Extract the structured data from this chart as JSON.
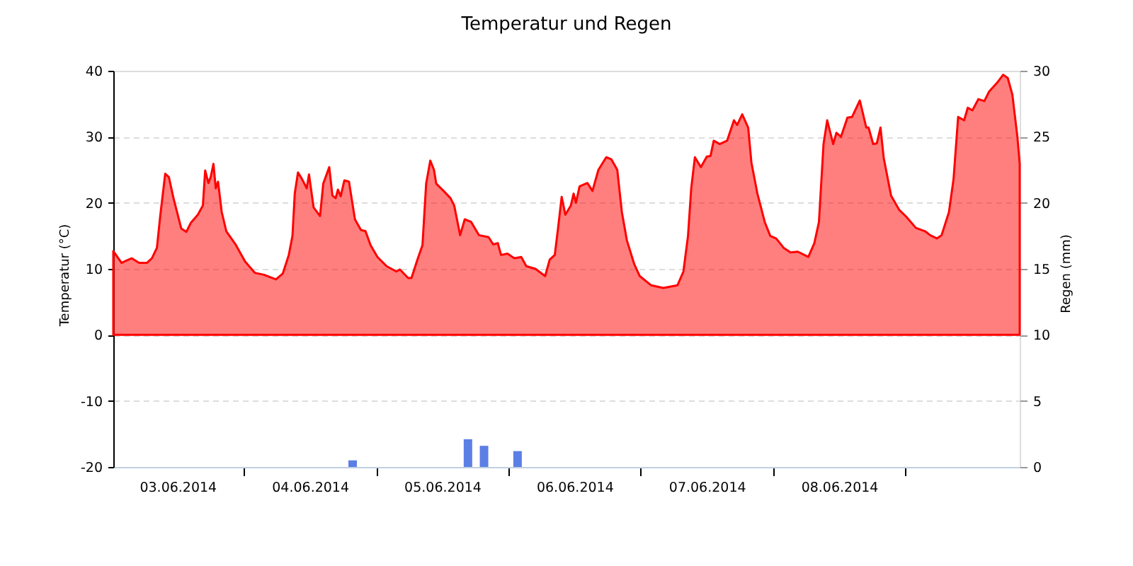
{
  "chart_data": {
    "type": "area",
    "title": "Temperatur und Regen",
    "ylabel": "Temperatur (°C)",
    "y2label": "Regen (mm)",
    "x": [
      "2014-06-03T00:20",
      "2014-06-03T01:50",
      "2014-06-03T02:50",
      "2014-06-03T03:40",
      "2014-06-03T05:00",
      "2014-06-03T06:25",
      "2014-06-03T07:20",
      "2014-06-03T08:15",
      "2014-06-03T08:50",
      "2014-06-03T09:45",
      "2014-06-03T10:25",
      "2014-06-03T11:15",
      "2014-06-03T12:40",
      "2014-06-03T13:35",
      "2014-06-03T14:25",
      "2014-06-03T15:40",
      "2014-06-03T16:35",
      "2014-06-03T17:00",
      "2014-06-03T17:35",
      "2014-06-03T18:00",
      "2014-06-03T18:30",
      "2014-06-03T18:55",
      "2014-06-03T19:20",
      "2014-06-03T20:00",
      "2014-06-03T20:50",
      "2014-06-03T22:35",
      "2014-06-04T00:15",
      "2014-06-04T02:00",
      "2014-06-04T03:40",
      "2014-06-04T05:50",
      "2014-06-04T07:05",
      "2014-06-04T08:10",
      "2014-06-04T08:50",
      "2014-06-04T09:15",
      "2014-06-04T09:50",
      "2014-06-04T10:30",
      "2014-06-04T11:25",
      "2014-06-04T11:50",
      "2014-06-04T12:40",
      "2014-06-04T13:50",
      "2014-06-04T14:25",
      "2014-06-04T15:30",
      "2014-06-04T16:05",
      "2014-06-04T16:40",
      "2014-06-04T17:05",
      "2014-06-04T17:35",
      "2014-06-04T18:15",
      "2014-06-04T19:05",
      "2014-06-04T20:10",
      "2014-06-04T21:15",
      "2014-06-04T22:05",
      "2014-06-04T23:00",
      "2014-06-05T00:15",
      "2014-06-05T01:55",
      "2014-06-05T03:40",
      "2014-06-05T04:20",
      "2014-06-05T05:50",
      "2014-06-05T06:25",
      "2014-06-05T07:30",
      "2014-06-05T08:25",
      "2014-06-05T09:05",
      "2014-06-05T09:50",
      "2014-06-05T10:30",
      "2014-06-05T10:55",
      "2014-06-05T12:15",
      "2014-06-05T13:30",
      "2014-06-05T14:10",
      "2014-06-05T15:15",
      "2014-06-05T16:05",
      "2014-06-05T17:15",
      "2014-06-05T18:40",
      "2014-06-05T20:25",
      "2014-06-05T21:15",
      "2014-06-05T22:05",
      "2014-06-05T22:40",
      "2014-06-05T23:50",
      "2014-06-06T01:05",
      "2014-06-06T02:20",
      "2014-06-06T03:15",
      "2014-06-06T04:55",
      "2014-06-06T06:40",
      "2014-06-06T07:30",
      "2014-06-06T08:25",
      "2014-06-06T09:00",
      "2014-06-06T09:40",
      "2014-06-06T10:20",
      "2014-06-06T11:20",
      "2014-06-06T11:50",
      "2014-06-06T12:15",
      "2014-06-06T12:55",
      "2014-06-06T14:20",
      "2014-06-06T15:15",
      "2014-06-06T16:20",
      "2014-06-06T17:45",
      "2014-06-06T18:40",
      "2014-06-06T19:45",
      "2014-06-06T20:35",
      "2014-06-06T21:30",
      "2014-06-06T22:50",
      "2014-06-06T23:50",
      "2014-06-07T01:55",
      "2014-06-07T04:05",
      "2014-06-07T06:40",
      "2014-06-07T07:45",
      "2014-06-07T08:35",
      "2014-06-07T09:10",
      "2014-06-07T09:50",
      "2014-06-07T10:55",
      "2014-06-07T12:00",
      "2014-06-07T12:40",
      "2014-06-07T13:15",
      "2014-06-07T14:20",
      "2014-06-07T15:40",
      "2014-06-07T16:55",
      "2014-06-07T17:30",
      "2014-06-07T18:25",
      "2014-06-07T19:30",
      "2014-06-07T20:05",
      "2014-06-07T21:10",
      "2014-06-07T22:30",
      "2014-06-07T23:30",
      "2014-06-08T00:35",
      "2014-06-08T01:55",
      "2014-06-08T03:10",
      "2014-06-08T04:30",
      "2014-06-08T06:25",
      "2014-06-08T07:30",
      "2014-06-08T08:20",
      "2014-06-08T09:10",
      "2014-06-08T09:50",
      "2014-06-08T10:55",
      "2014-06-08T11:30",
      "2014-06-08T12:20",
      "2014-06-08T13:30",
      "2014-06-08T14:20",
      "2014-06-08T15:45",
      "2014-06-08T16:55",
      "2014-06-08T17:20",
      "2014-06-08T18:10",
      "2014-06-08T18:50",
      "2014-06-08T19:30",
      "2014-06-08T20:05",
      "2014-06-08T21:25",
      "2014-06-08T22:55",
      "2014-06-09T00:10",
      "2014-06-09T01:55",
      "2014-06-09T03:35",
      "2014-06-09T04:30",
      "2014-06-09T05:45",
      "2014-06-09T06:35",
      "2014-06-09T07:55",
      "2014-06-09T08:45",
      "2014-06-09T09:35",
      "2014-06-09T10:40",
      "2014-06-09T11:20",
      "2014-06-09T12:10",
      "2014-06-09T13:15",
      "2014-06-09T14:20",
      "2014-06-09T15:10",
      "2014-06-09T16:40",
      "2014-06-09T17:45",
      "2014-06-09T18:35",
      "2014-06-09T19:25",
      "2014-06-09T20:20",
      "2014-06-09T20:45"
    ],
    "xlim": [
      "2014-06-03T00:20",
      "2014-06-09T20:45"
    ],
    "xticks": [
      {
        "value": "2014-06-03T12:00",
        "label": "03.06.2014"
      },
      {
        "value": "2014-06-04",
        "label": null
      },
      {
        "value": "2014-06-04T12:00",
        "label": "04.06.2014"
      },
      {
        "value": "2014-06-05",
        "label": null
      },
      {
        "value": "2014-06-05T12:00",
        "label": "05.06.2014"
      },
      {
        "value": "2014-06-06",
        "label": null
      },
      {
        "value": "2014-06-06T12:00",
        "label": "06.06.2014"
      },
      {
        "value": "2014-06-07",
        "label": null
      },
      {
        "value": "2014-06-07T12:00",
        "label": "07.06.2014"
      },
      {
        "value": "2014-06-08",
        "label": null
      },
      {
        "value": "2014-06-08T12:00",
        "label": "08.06.2014"
      },
      {
        "value": "2014-06-09",
        "label": null
      }
    ],
    "ylim": [
      -20,
      40
    ],
    "yticks": [
      -20,
      -10,
      0,
      10,
      20,
      30,
      40
    ],
    "y2lim": [
      0,
      30
    ],
    "y2ticks": [
      0,
      5,
      10,
      15,
      20,
      25,
      30
    ],
    "grid": "y",
    "series": [
      {
        "color": "#ff0000",
        "values": [
          12.7,
          10.9,
          11.3,
          11.6,
          10.9,
          10.9,
          11.6,
          13.2,
          17.9,
          24.4,
          23.9,
          20.7,
          16.1,
          15.6,
          17.0,
          18.2,
          19.6,
          24.9,
          23.0,
          23.9,
          25.9,
          22.2,
          23.2,
          18.6,
          15.7,
          13.6,
          11.1,
          9.4,
          9.1,
          8.4,
          9.3,
          12.1,
          15.0,
          21.4,
          24.6,
          23.7,
          22.2,
          24.3,
          19.3,
          18.0,
          22.9,
          25.4,
          21.1,
          20.7,
          22.0,
          21.0,
          23.4,
          23.2,
          17.5,
          15.9,
          15.7,
          13.6,
          11.8,
          10.4,
          9.6,
          9.9,
          8.6,
          8.6,
          11.4,
          13.6,
          22.9,
          26.4,
          25.0,
          22.9,
          21.8,
          20.7,
          19.6,
          15.1,
          17.5,
          17.1,
          15.1,
          14.8,
          13.7,
          13.9,
          12.1,
          12.3,
          11.6,
          11.8,
          10.4,
          10.0,
          8.9,
          11.4,
          12.1,
          16.1,
          20.9,
          18.2,
          19.6,
          21.4,
          20.0,
          22.5,
          23.0,
          21.8,
          25.0,
          26.9,
          26.6,
          25.0,
          18.6,
          14.3,
          10.7,
          8.9,
          7.5,
          7.1,
          7.5,
          9.6,
          15.0,
          22.2,
          26.9,
          25.4,
          27.0,
          27.1,
          29.4,
          28.9,
          29.4,
          32.5,
          31.8,
          33.4,
          31.4,
          26.1,
          21.4,
          17.1,
          15.0,
          14.6,
          13.2,
          12.5,
          12.6,
          11.8,
          13.9,
          17.1,
          28.9,
          32.5,
          28.9,
          30.6,
          30.0,
          32.9,
          33.0,
          35.5,
          31.4,
          31.4,
          28.9,
          29.0,
          31.4,
          26.8,
          21.1,
          18.9,
          17.9,
          16.2,
          15.7,
          15.1,
          14.6,
          15.1,
          18.6,
          23.6,
          33.0,
          32.5,
          34.4,
          34.0,
          35.7,
          35.4,
          36.8,
          38.2,
          39.4,
          38.9,
          36.4,
          30.0,
          25.9
        ]
      },
      {
        "type": "bar",
        "axis": "y2",
        "color": "#5c7fe6",
        "x": [
          "2014-06-04T19:45",
          "2014-06-05T16:40",
          "2014-06-05T19:35",
          "2014-06-06T01:40"
        ],
        "values": [
          0.5,
          2.1,
          1.6,
          1.2
        ]
      }
    ]
  }
}
